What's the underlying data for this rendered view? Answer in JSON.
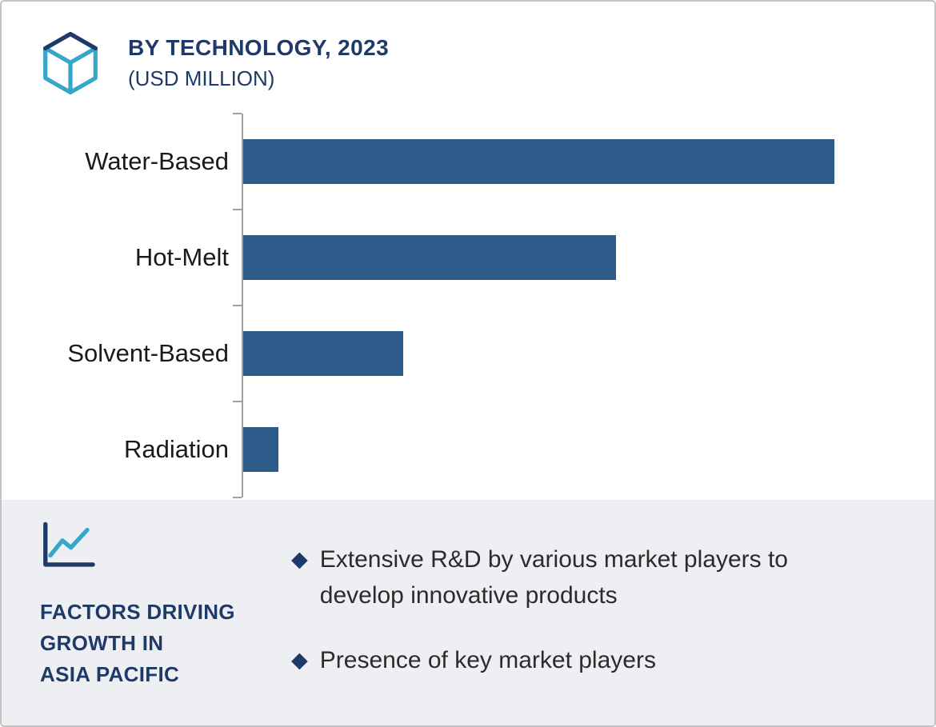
{
  "header": {
    "title": "BY TECHNOLOGY, 2023",
    "subtitle": "(USD MILLION)"
  },
  "chart_data": {
    "type": "bar",
    "orientation": "horizontal",
    "title": "BY TECHNOLOGY, 2023",
    "subtitle": "(USD MILLION)",
    "unit": "USD Million",
    "categories": [
      "Water-Based",
      "Hot-Melt",
      "Solvent-Based",
      "Radiation"
    ],
    "values": [
      100,
      63,
      27,
      6
    ],
    "note": "no numeric data labels or axis ticks shown; values are estimated relative bar lengths (% of longest bar)",
    "value_labels_shown": false,
    "gridlines": false,
    "bar_color": "#2e5c8a",
    "axis_color": "#a0a0a0"
  },
  "factors": {
    "heading_lines": [
      "FACTORS DRIVING",
      "GROWTH IN",
      "ASIA PACIFIC"
    ],
    "bullet_marker": "◆",
    "bullets": [
      "Extensive R&D by various market players to develop innovative products",
      "Presence of key market players"
    ],
    "panel_bg": "#edeff3"
  },
  "colors": {
    "accent_navy": "#1f3a68",
    "accent_teal": "#35a7c9",
    "bar_blue": "#2e5c8a"
  }
}
